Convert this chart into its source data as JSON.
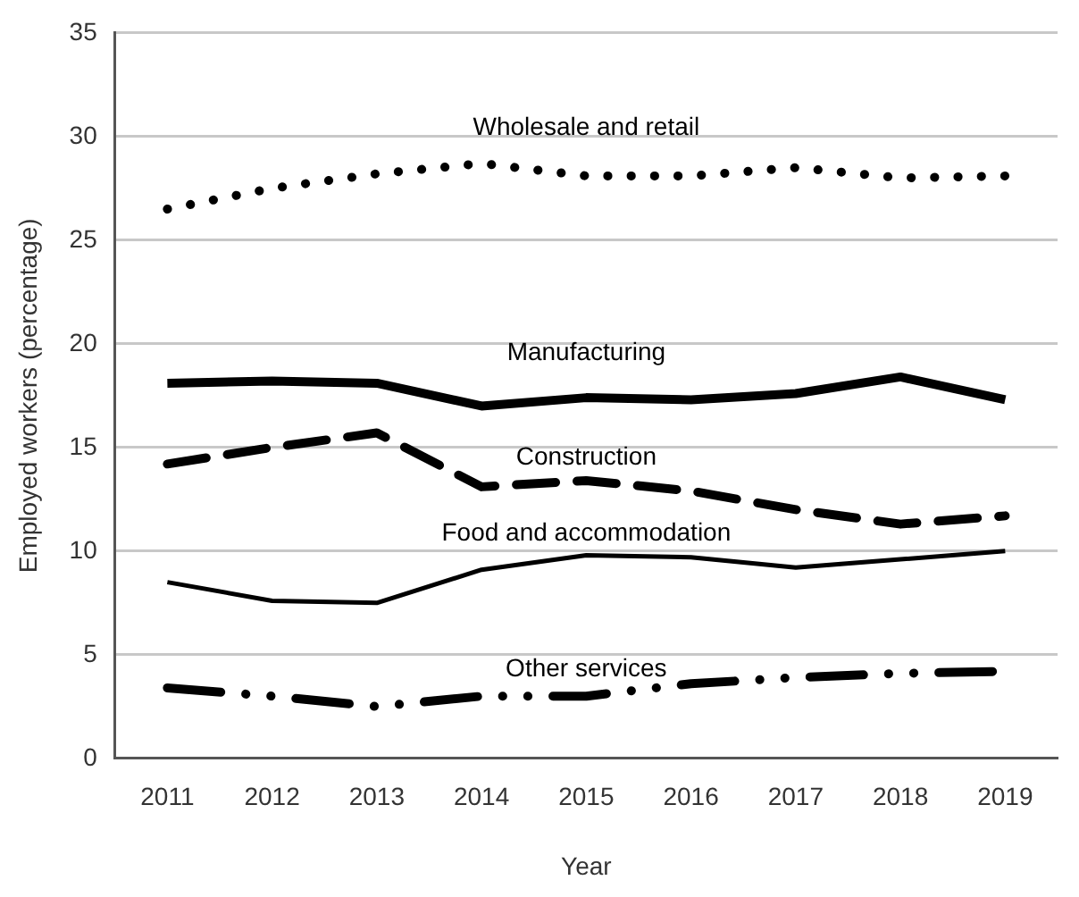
{
  "chart_data": {
    "type": "line",
    "xlabel": "Year",
    "ylabel": "Employed workers (percentage)",
    "categories": [
      "2011",
      "2012",
      "2013",
      "2014",
      "2015",
      "2016",
      "2017",
      "2018",
      "2019"
    ],
    "series": [
      {
        "name": "Wholesale and retail",
        "color": "#000000",
        "line_style": "dotted",
        "values": [
          26.5,
          27.5,
          28.2,
          28.7,
          28.1,
          28.1,
          28.5,
          28.0,
          28.1
        ]
      },
      {
        "name": "Manufacturing",
        "color": "#000000",
        "line_style": "solid",
        "values": [
          18.1,
          18.2,
          18.1,
          17.0,
          17.4,
          17.3,
          17.6,
          18.4,
          17.3
        ]
      },
      {
        "name": "Construction",
        "color": "#000000",
        "line_style": "dashed",
        "values": [
          14.2,
          15.0,
          15.7,
          13.1,
          13.4,
          12.9,
          12.0,
          11.3,
          11.7
        ]
      },
      {
        "name": "Food and accommodation",
        "color": "#000000",
        "line_style": "solid",
        "values": [
          8.5,
          7.6,
          7.5,
          9.1,
          9.8,
          9.7,
          9.2,
          9.6,
          10.0
        ]
      },
      {
        "name": "Other services",
        "color": "#000000",
        "line_style": "dashdot",
        "values": [
          3.4,
          3.0,
          2.5,
          3.0,
          3.0,
          3.6,
          3.9,
          4.1,
          4.2
        ]
      }
    ],
    "ylim": [
      0,
      35
    ],
    "yticks": [
      0,
      5,
      10,
      15,
      20,
      25,
      30,
      35
    ],
    "grid": "y",
    "legend": false,
    "marker": "none"
  }
}
